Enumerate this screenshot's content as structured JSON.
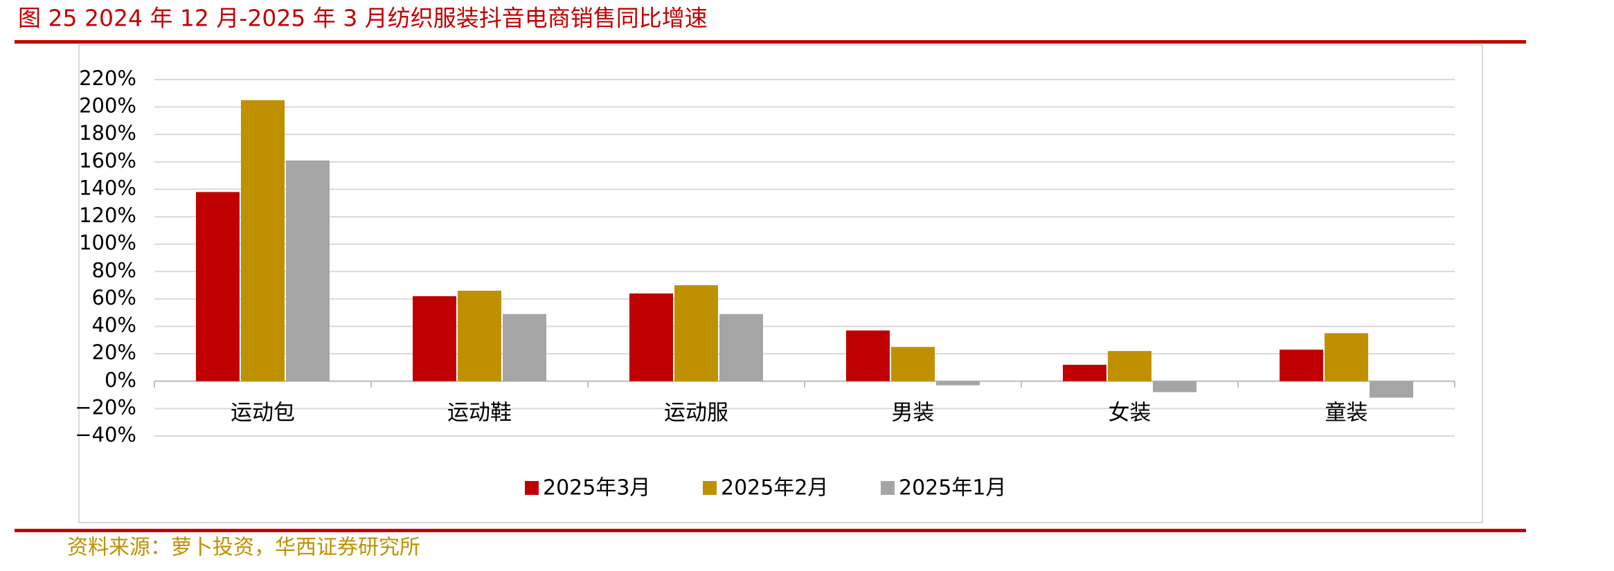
{
  "chart_data": {
    "type": "bar",
    "title": "图 25 2024 年 12 月-2025 年 3 月纺织服装抖音电商销售同比增速",
    "categories": [
      "运动包",
      "运动鞋",
      "运动服",
      "男装",
      "女装",
      "童装"
    ],
    "series": [
      {
        "name": "2025年3月",
        "color": "#c00000",
        "values": [
          138,
          62,
          64,
          37,
          12,
          23
        ]
      },
      {
        "name": "2025年2月",
        "color": "#bf9000",
        "values": [
          205,
          66,
          70,
          25,
          22,
          35
        ]
      },
      {
        "name": "2025年1月",
        "color": "#a5a5a5",
        "values": [
          161,
          49,
          49,
          -3,
          -8,
          -12
        ]
      }
    ],
    "ylim": [
      -40,
      220
    ],
    "yticks": [
      {
        "value": -40,
        "label": "−40%"
      },
      {
        "value": -20,
        "label": "−20%"
      },
      {
        "value": 0,
        "label": "0%"
      },
      {
        "value": 20,
        "label": "20%"
      },
      {
        "value": 40,
        "label": "40%"
      },
      {
        "value": 60,
        "label": "60%"
      },
      {
        "value": 80,
        "label": "80%"
      },
      {
        "value": 100,
        "label": "100%"
      },
      {
        "value": 120,
        "label": "120%"
      },
      {
        "value": 140,
        "label": "140%"
      },
      {
        "value": 160,
        "label": "160%"
      },
      {
        "value": 180,
        "label": "180%"
      },
      {
        "value": 200,
        "label": "200%"
      },
      {
        "value": 220,
        "label": "220%"
      }
    ],
    "grid": true,
    "legend": "bottom",
    "source": "资料来源：萝卜投资，华西证券研究所"
  }
}
